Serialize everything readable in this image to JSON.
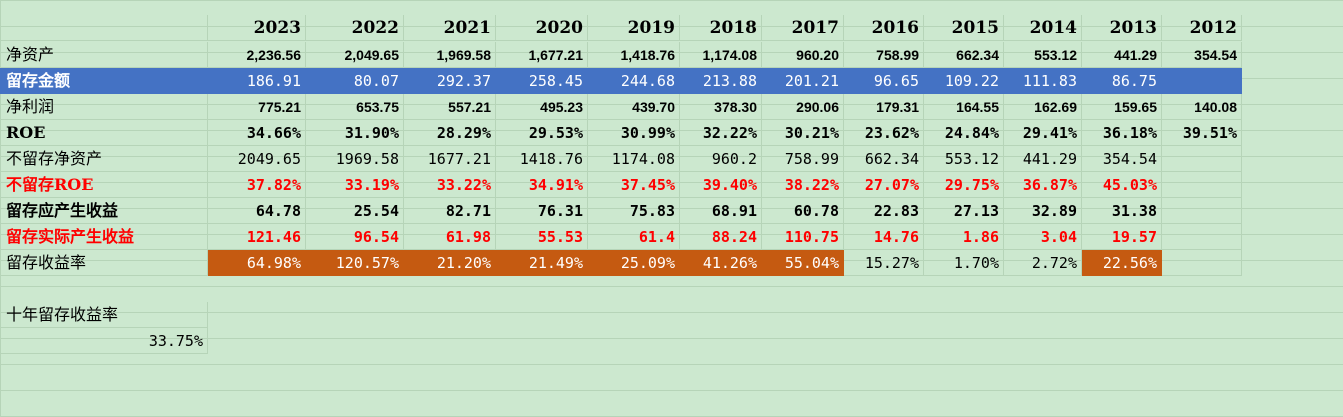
{
  "years": [
    "2023",
    "2022",
    "2021",
    "2020",
    "2019",
    "2018",
    "2017",
    "2016",
    "2015",
    "2014",
    "2013",
    "2012"
  ],
  "rows": {
    "net_assets": {
      "label": "净资产",
      "values": [
        "2,236.56",
        "2,049.65",
        "1,969.58",
        "1,677.21",
        "1,418.76",
        "1,174.08",
        "960.20",
        "758.99",
        "662.34",
        "553.12",
        "441.29",
        "354.54"
      ]
    },
    "retained": {
      "label": "留存金额",
      "values": [
        "186.91",
        "80.07",
        "292.37",
        "258.45",
        "244.68",
        "213.88",
        "201.21",
        "96.65",
        "109.22",
        "111.83",
        "86.75",
        ""
      ]
    },
    "net_profit": {
      "label": "净利润",
      "values": [
        "775.21",
        "653.75",
        "557.21",
        "495.23",
        "439.70",
        "378.30",
        "290.06",
        "179.31",
        "164.55",
        "162.69",
        "159.65",
        "140.08"
      ]
    },
    "roe": {
      "label": "ROE",
      "values": [
        "34.66%",
        "31.90%",
        "28.29%",
        "29.53%",
        "30.99%",
        "32.22%",
        "30.21%",
        "23.62%",
        "24.84%",
        "29.41%",
        "36.18%",
        "39.51%"
      ]
    },
    "non_retained_assets": {
      "label": "不留存净资产",
      "values": [
        "2049.65",
        "1969.58",
        "1677.21",
        "1418.76",
        "1174.08",
        "960.2",
        "758.99",
        "662.34",
        "553.12",
        "441.29",
        "354.54",
        ""
      ]
    },
    "non_retained_roe": {
      "label": "不留存ROE",
      "values": [
        "37.82%",
        "33.19%",
        "33.22%",
        "34.91%",
        "37.45%",
        "39.40%",
        "38.22%",
        "27.07%",
        "29.75%",
        "36.87%",
        "45.03%",
        ""
      ]
    },
    "expected_gain": {
      "label": "留存应产生收益",
      "values": [
        "64.78",
        "25.54",
        "82.71",
        "76.31",
        "75.83",
        "68.91",
        "60.78",
        "22.83",
        "27.13",
        "32.89",
        "31.38",
        ""
      ]
    },
    "actual_gain": {
      "label": "留存实际产生收益",
      "values": [
        "121.46",
        "96.54",
        "61.98",
        "55.53",
        "61.4",
        "88.24",
        "110.75",
        "14.76",
        "1.86",
        "3.04",
        "19.57",
        ""
      ]
    },
    "retained_yield": {
      "label": "留存收益率",
      "values": [
        "64.98%",
        "120.57%",
        "21.20%",
        "21.49%",
        "25.09%",
        "41.26%",
        "55.04%",
        "15.27%",
        "1.70%",
        "2.72%",
        "22.56%",
        ""
      ],
      "highlight": [
        true,
        true,
        true,
        true,
        true,
        true,
        true,
        false,
        false,
        false,
        true,
        false
      ]
    }
  },
  "ten_year": {
    "label": "十年留存收益率",
    "value": "33.75%"
  },
  "colors": {
    "sheet_bg": "#cce8cf",
    "blue_row": "#4472c4",
    "orange_cell": "#c55a11",
    "red_text": "#ff0000"
  }
}
